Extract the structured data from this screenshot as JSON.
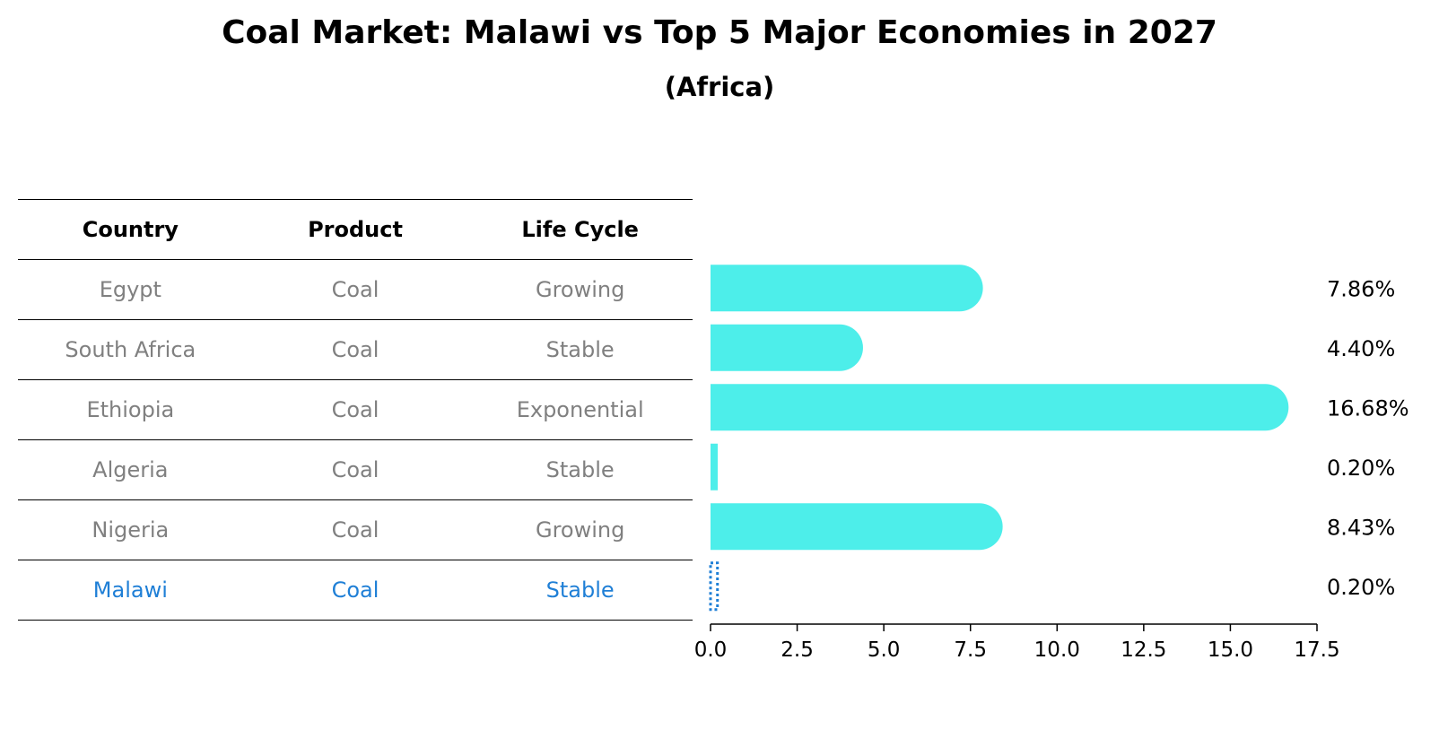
{
  "title": "Coal Market: Malawi vs Top 5 Major Economies in 2027",
  "subtitle": "(Africa)",
  "table": {
    "headers": [
      "Country",
      "Product",
      "Life Cycle"
    ],
    "rows": [
      {
        "country": "Egypt",
        "product": "Coal",
        "life_cycle": "Growing"
      },
      {
        "country": "South Africa",
        "product": "Coal",
        "life_cycle": "Stable"
      },
      {
        "country": "Ethiopia",
        "product": "Coal",
        "life_cycle": "Exponential"
      },
      {
        "country": "Algeria",
        "product": "Coal",
        "life_cycle": "Stable"
      },
      {
        "country": "Nigeria",
        "product": "Coal",
        "life_cycle": "Growing"
      },
      {
        "country": "Malawi",
        "product": "Coal",
        "life_cycle": "Stable"
      }
    ],
    "highlight_color": "#1f7fd6"
  },
  "chart_data": {
    "type": "bar",
    "orientation": "horizontal",
    "categories": [
      "Egypt",
      "South Africa",
      "Ethiopia",
      "Algeria",
      "Nigeria",
      "Malawi"
    ],
    "values": [
      7.86,
      4.4,
      16.68,
      0.2,
      8.43,
      0.2
    ],
    "value_labels": [
      "7.86%",
      "4.40%",
      "16.68%",
      "0.20%",
      "8.43%",
      "0.20%"
    ],
    "xlim": [
      0,
      17.5
    ],
    "xticks": [
      0.0,
      2.5,
      5.0,
      7.5,
      10.0,
      12.5,
      15.0,
      17.5
    ],
    "xtick_labels": [
      "0.0",
      "2.5",
      "5.0",
      "7.5",
      "10.0",
      "12.5",
      "15.0",
      "17.5"
    ],
    "bar_color": "#4deeea",
    "highlight_color": "#1f7fd6",
    "highlight_category": "Malawi",
    "grid": false
  }
}
